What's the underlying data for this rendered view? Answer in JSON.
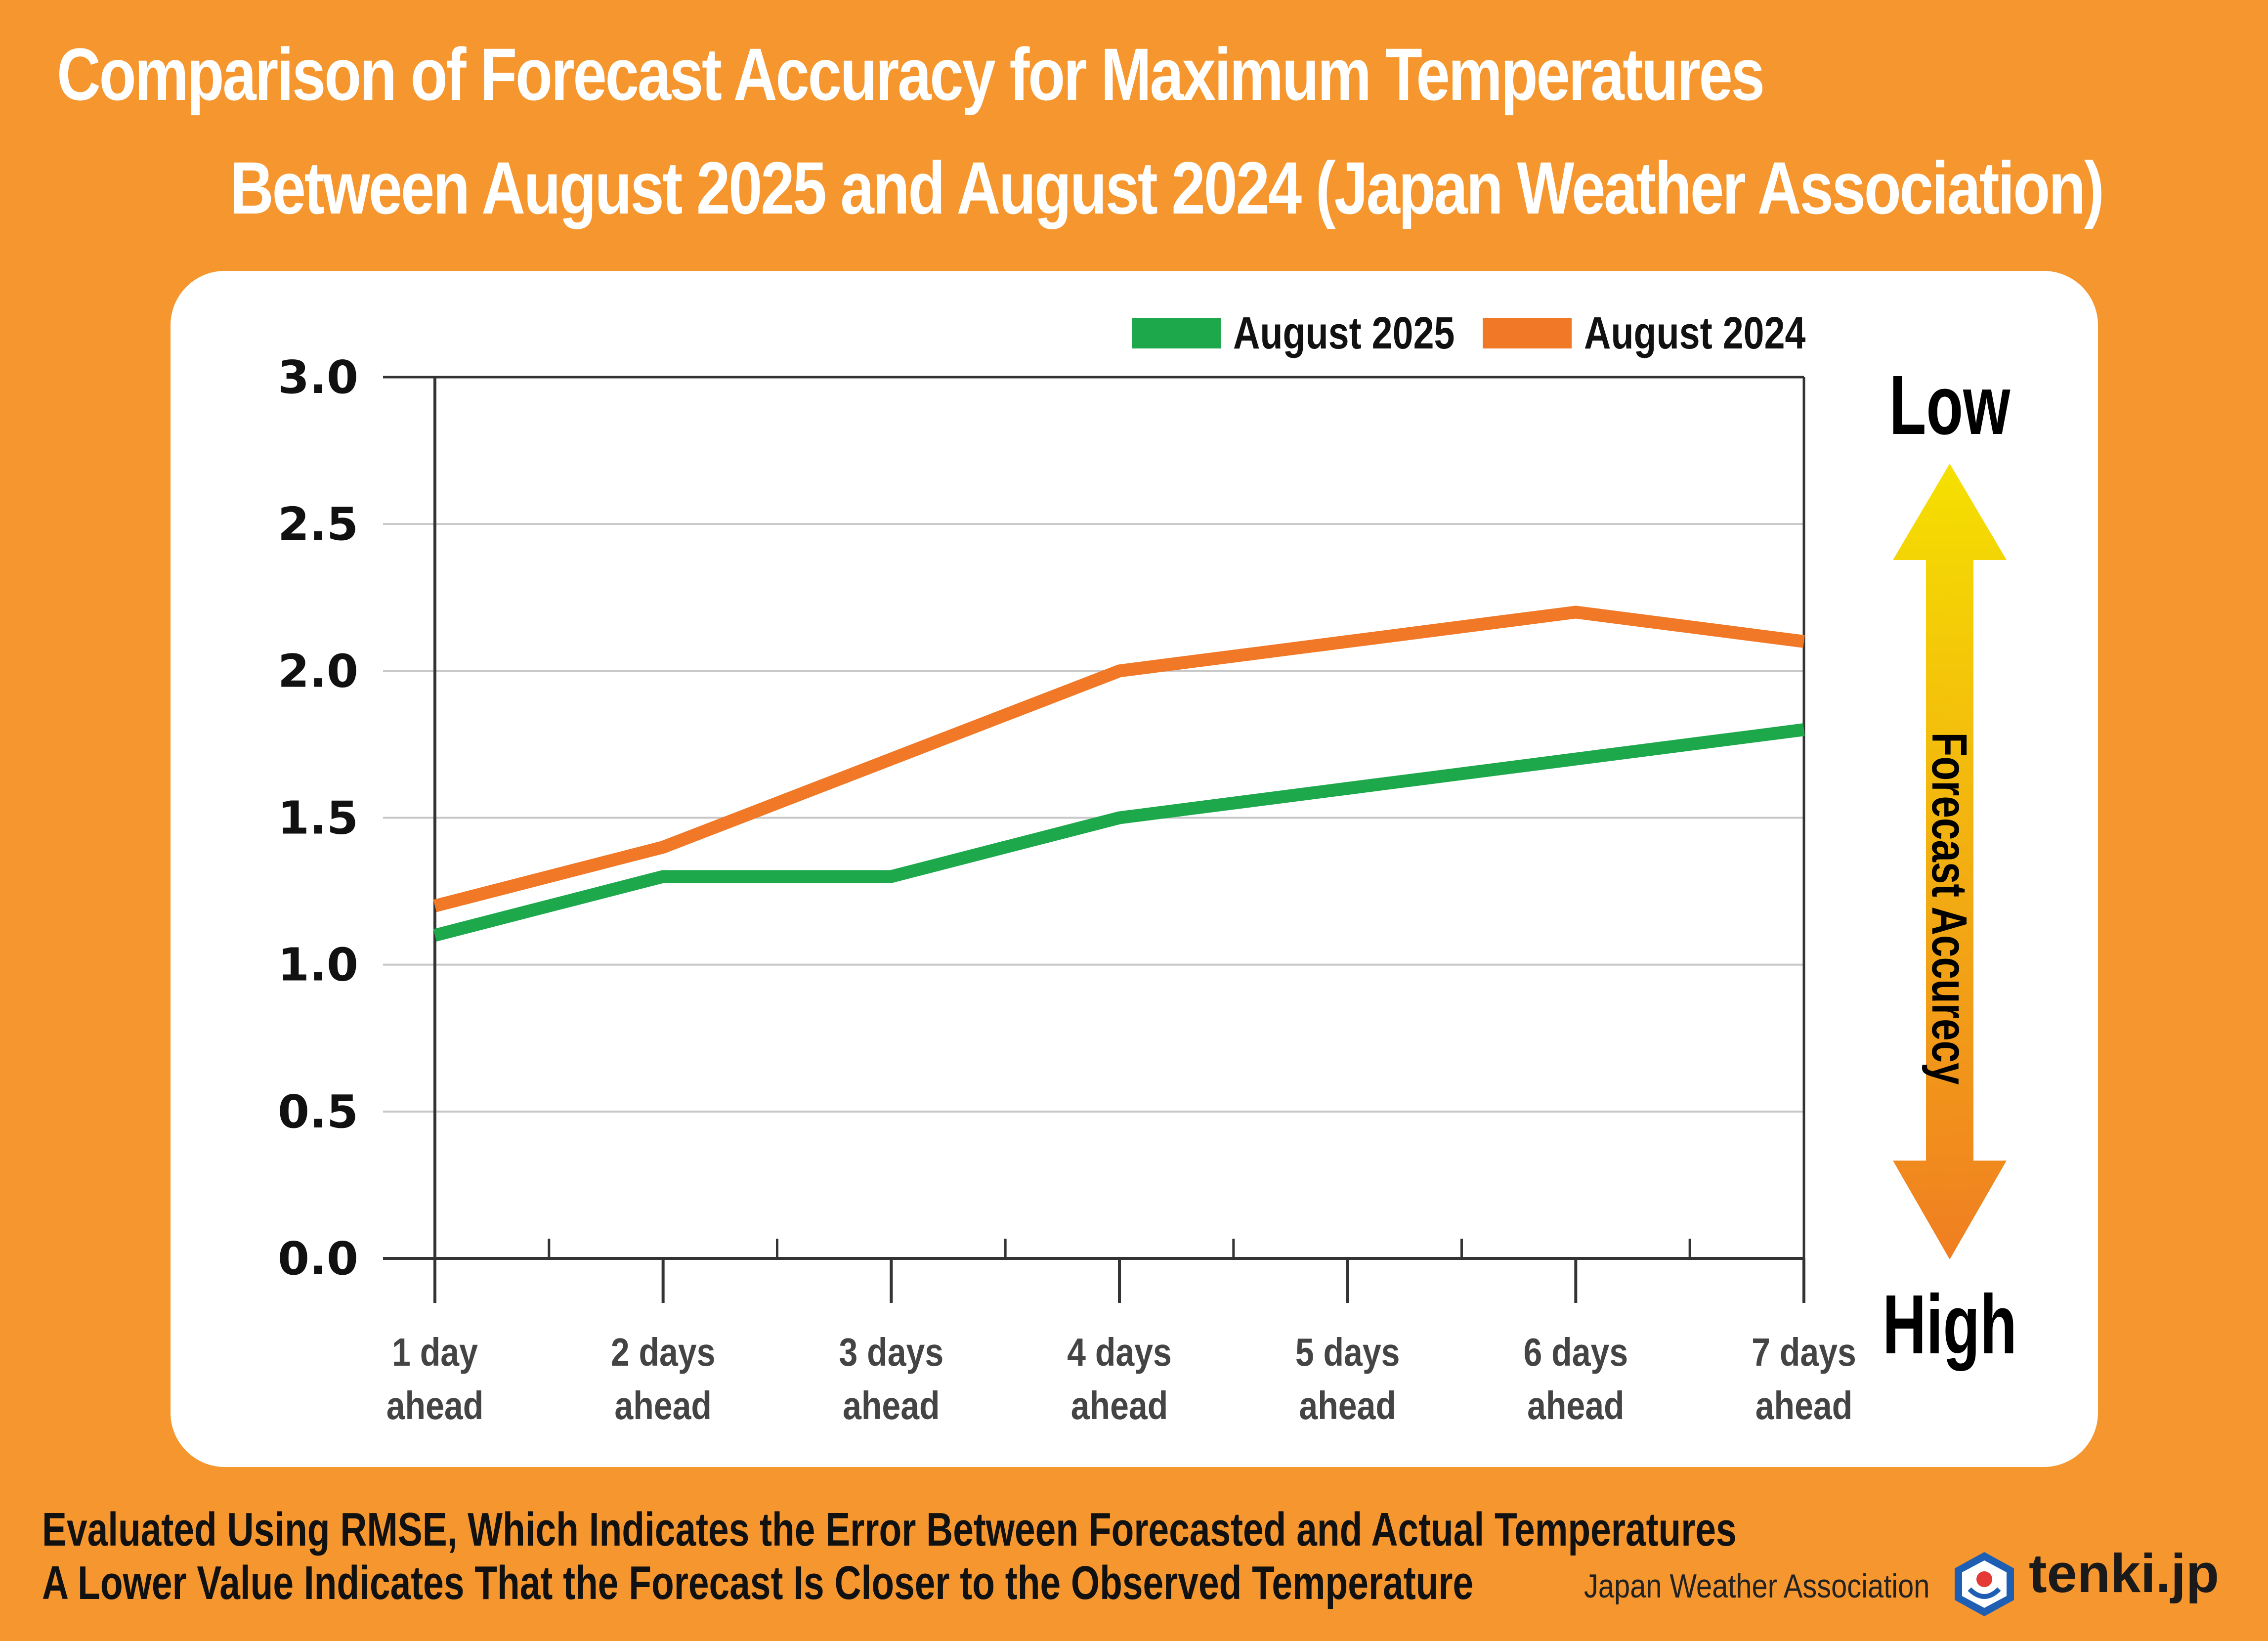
{
  "title_line1": "Comparison of Forecast Accuracy for Maximum Temperatures",
  "title_line2": "Between August 2025 and August 2024 (Japan Weather Association)",
  "chart_data": {
    "type": "line",
    "title": "Comparison of Forecast Accuracy for Maximum Temperatures Between August 2025 and August 2024 (Japan Weather Association)",
    "categories": [
      "1 day ahead",
      "2 days ahead",
      "3 days ahead",
      "4 days ahead",
      "5 days ahead",
      "6 days ahead",
      "7 days ahead"
    ],
    "category_lines": [
      [
        "1 day",
        "ahead"
      ],
      [
        "2 days",
        "ahead"
      ],
      [
        "3 days",
        "ahead"
      ],
      [
        "4 days",
        "ahead"
      ],
      [
        "5 days",
        "ahead"
      ],
      [
        "6 days",
        "ahead"
      ],
      [
        "7 days",
        "ahead"
      ]
    ],
    "series": [
      {
        "name": "August 2025",
        "color": "#1EA84C",
        "values": [
          1.1,
          1.3,
          1.3,
          1.5,
          1.6,
          1.7,
          1.8
        ]
      },
      {
        "name": "August 2024",
        "color": "#F07826",
        "values": [
          1.2,
          1.4,
          1.7,
          2.0,
          2.1,
          2.2,
          2.1
        ]
      }
    ],
    "ylim": [
      0,
      3.0
    ],
    "yticks": [
      "3.0",
      "2.5",
      "2.0",
      "1.5",
      "1.0",
      "0.5",
      "0.0"
    ],
    "ytick_values": [
      3.0,
      2.5,
      2.0,
      1.5,
      1.0,
      0.5,
      0.0
    ],
    "grid": true,
    "legend_position": "top-right",
    "xlabel": "",
    "ylabel": ""
  },
  "scale_indicator": {
    "top_label": "Low",
    "bottom_label": "High",
    "label": "Forecast Accurecy",
    "gradient_top": "#F5E000",
    "gradient_bottom": "#F07E22"
  },
  "notes": [
    "Evaluated Using RMSE, Which Indicates the Error Between Forecasted and Actual Temperatures",
    "A Lower Value Indicates That the Forecast Is Closer to the Observed Temperature"
  ],
  "footer": {
    "organization": "Japan Weather Association",
    "brand": "tenki.jp"
  },
  "colors": {
    "background": "#F5962E",
    "panel": "#FFFFFF",
    "grid": "#C8C8C8",
    "axis": "#333333"
  }
}
